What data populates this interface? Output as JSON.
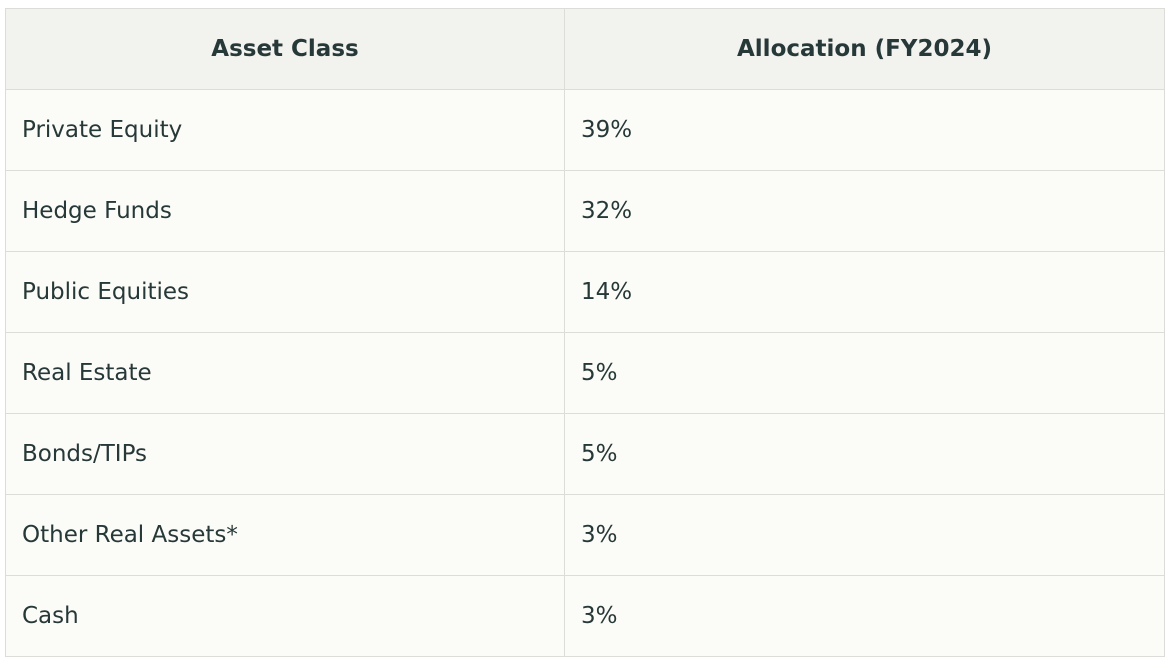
{
  "table": {
    "header": [
      "Asset Class",
      "Allocation (FY2024)"
    ],
    "rows": [
      [
        "Private Equity",
        "39%"
      ],
      [
        "Hedge Funds",
        "32%"
      ],
      [
        "Public Equities",
        "14%"
      ],
      [
        "Real Estate",
        "5%"
      ],
      [
        "Bonds/TIPs",
        "5%"
      ],
      [
        "Other Real Assets*",
        "3%"
      ],
      [
        "Cash",
        "3%"
      ]
    ]
  }
}
